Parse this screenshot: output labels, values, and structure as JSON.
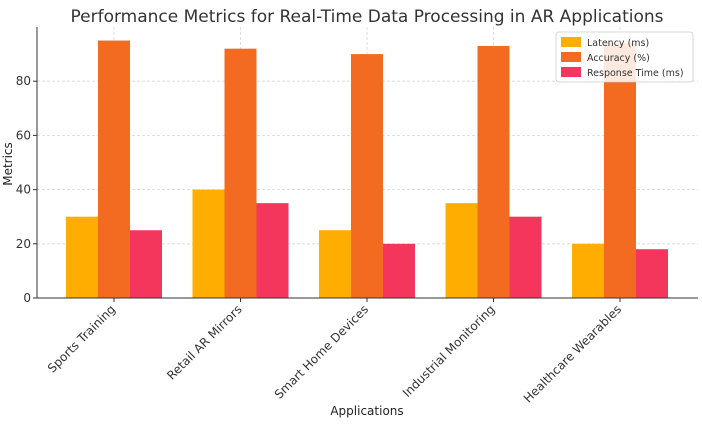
{
  "chart_data": {
    "type": "bar",
    "title": "Performance Metrics for Real-Time Data Processing in AR Applications",
    "xlabel": "Applications",
    "ylabel": "Metrics",
    "ylim": [
      0,
      100
    ],
    "yticks": [
      0,
      20,
      40,
      60,
      80
    ],
    "grid": true,
    "legend_position": "top-right",
    "categories": [
      "Sports Training",
      "Retail AR Mirrors",
      "Smart Home Devices",
      "Industrial Monitoring",
      "Healthcare Wearables"
    ],
    "series": [
      {
        "name": "Latency (ms)",
        "color": "#ffad00",
        "values": [
          30,
          40,
          25,
          35,
          20
        ]
      },
      {
        "name": "Accuracy (%)",
        "color": "#f26b21",
        "values": [
          95,
          92,
          90,
          93,
          94
        ]
      },
      {
        "name": "Response Time (ms)",
        "color": "#f5365c",
        "values": [
          25,
          35,
          20,
          30,
          18
        ]
      }
    ]
  }
}
